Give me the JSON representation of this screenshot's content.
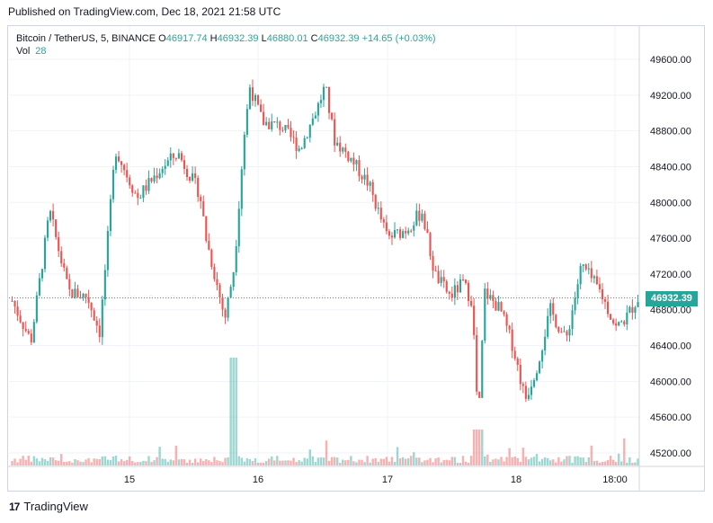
{
  "header": {
    "published_text": "Published on TradingView.com, Dec 18, 2021 21:58 UTC"
  },
  "legend": {
    "symbol": "Bitcoin / TetherUS, 5, BINANCE",
    "o_label": "O",
    "o_value": "46917.74",
    "h_label": "H",
    "h_value": "46932.39",
    "l_label": "L",
    "l_value": "46880.01",
    "c_label": "C",
    "c_value": "46932.39",
    "change": "+14.65 (+0.03%)",
    "vol_label": "Vol",
    "vol_value": "28"
  },
  "footer": {
    "brand": "TradingView",
    "logo_glyph": "17"
  },
  "colors": {
    "up": "#26a69a",
    "down": "#ef5350",
    "grid": "#f0f3fa",
    "last_price_line": "#26a69a"
  },
  "chart_data": {
    "type": "candlestick",
    "symbol": "BTCUSDT",
    "interval": "5",
    "y_axis_labels": [
      "49600.00",
      "49200.00",
      "48800.00",
      "48400.00",
      "48000.00",
      "47600.00",
      "47200.00",
      "46800.00",
      "46400.00",
      "46000.00",
      "45600.00",
      "45200.00"
    ],
    "x_axis_labels": [
      "15",
      "16",
      "17",
      "18",
      "18:00"
    ],
    "last_price": "46932.39",
    "ylim": [
      45100,
      49900
    ],
    "price_path_anchors": [
      [
        0,
        46900
      ],
      [
        0.03,
        46450
      ],
      [
        0.06,
        47900
      ],
      [
        0.09,
        47000
      ],
      [
        0.12,
        46950
      ],
      [
        0.14,
        46550
      ],
      [
        0.165,
        48600
      ],
      [
        0.2,
        48050
      ],
      [
        0.24,
        48400
      ],
      [
        0.265,
        48550
      ],
      [
        0.3,
        48100
      ],
      [
        0.31,
        47600
      ],
      [
        0.34,
        46700
      ],
      [
        0.355,
        47300
      ],
      [
        0.37,
        48700
      ],
      [
        0.38,
        49300
      ],
      [
        0.4,
        48900
      ],
      [
        0.43,
        48850
      ],
      [
        0.46,
        48600
      ],
      [
        0.49,
        49100
      ],
      [
        0.5,
        49300
      ],
      [
        0.515,
        48700
      ],
      [
        0.54,
        48500
      ],
      [
        0.57,
        48200
      ],
      [
        0.6,
        47600
      ],
      [
        0.63,
        47700
      ],
      [
        0.655,
        47900
      ],
      [
        0.675,
        47200
      ],
      [
        0.7,
        46950
      ],
      [
        0.72,
        47100
      ],
      [
        0.735,
        46900
      ],
      [
        0.745,
        45500
      ],
      [
        0.755,
        47000
      ],
      [
        0.78,
        46800
      ],
      [
        0.8,
        46400
      ],
      [
        0.82,
        45800
      ],
      [
        0.84,
        46200
      ],
      [
        0.86,
        46800
      ],
      [
        0.885,
        46450
      ],
      [
        0.91,
        47300
      ],
      [
        0.94,
        47000
      ],
      [
        0.965,
        46600
      ],
      [
        0.98,
        46700
      ],
      [
        1.0,
        46930
      ]
    ]
  }
}
